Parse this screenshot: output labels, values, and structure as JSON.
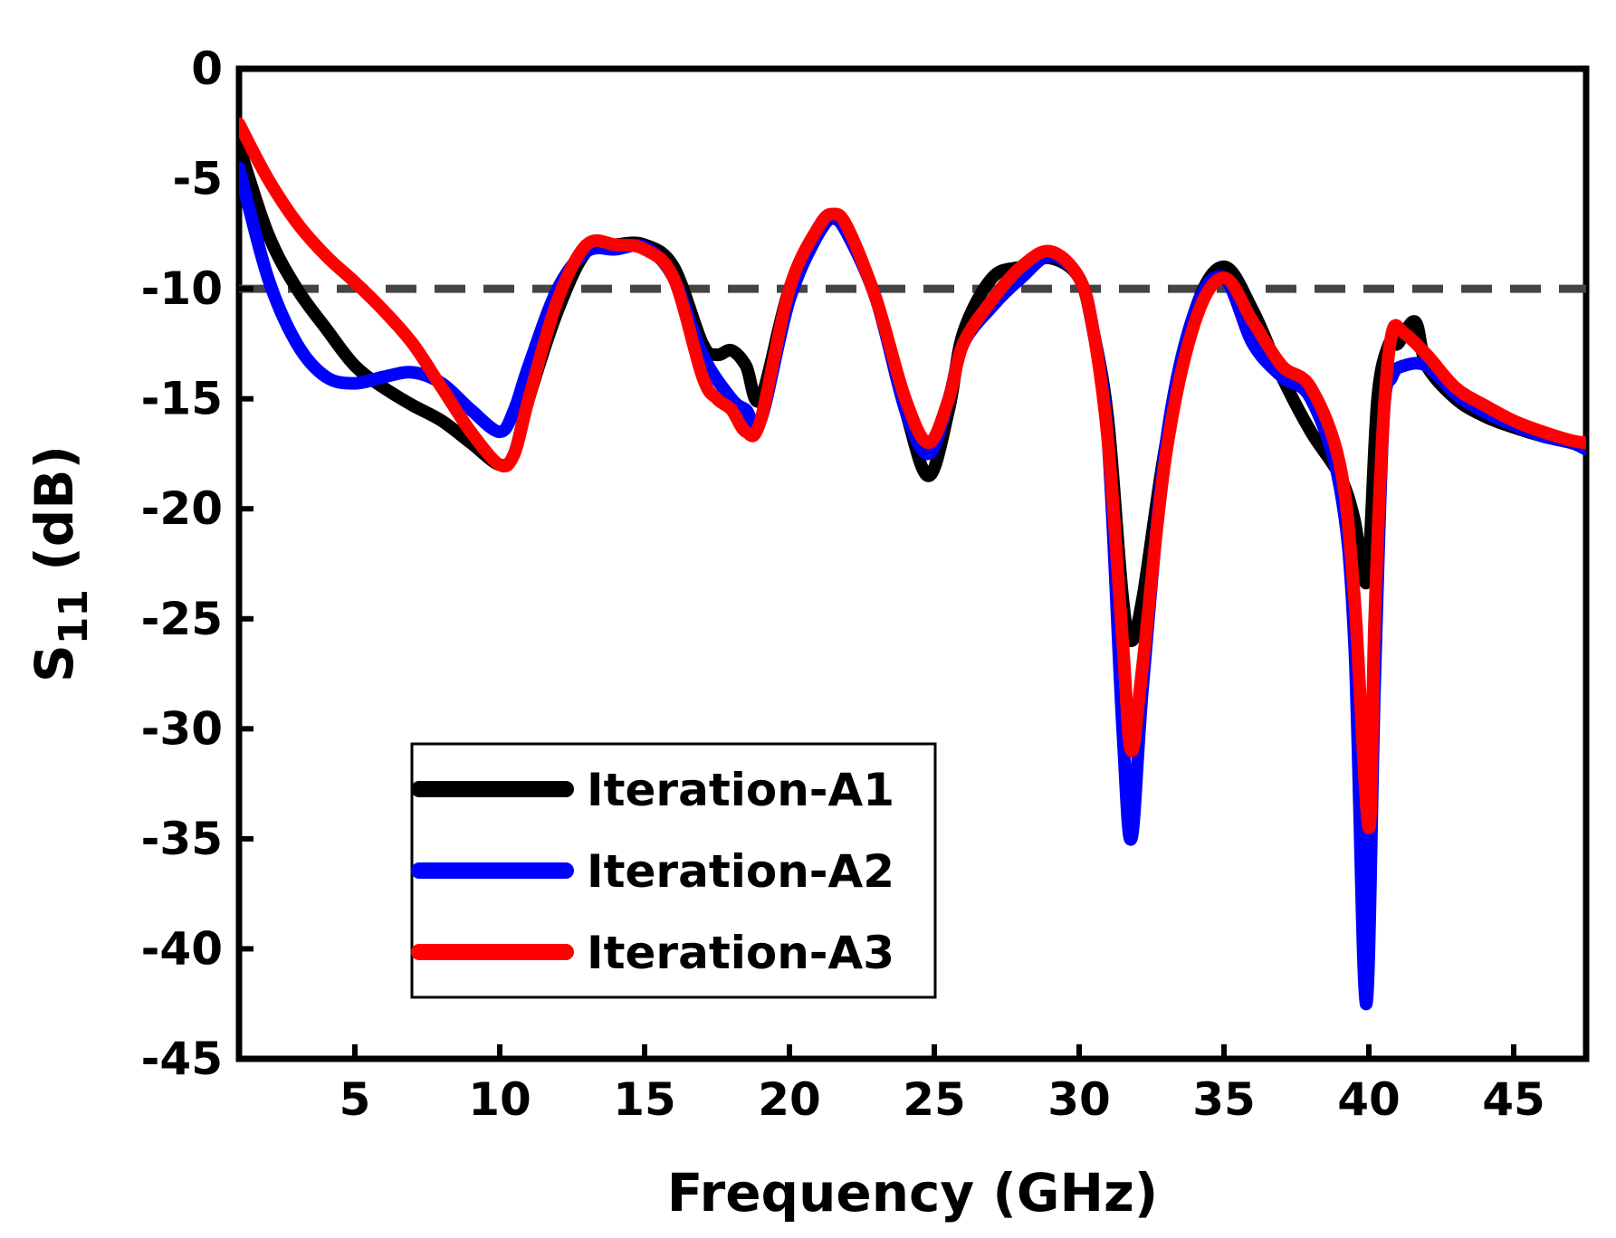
{
  "chart_data": {
    "type": "line",
    "title": "",
    "xlabel": "Frequency (GHz)",
    "ylabel_main": "S",
    "ylabel_sub": "11",
    "ylabel_unit": " (dB)",
    "xlim": [
      1,
      47.5
    ],
    "ylim": [
      -45,
      0
    ],
    "xticks": [
      5,
      10,
      15,
      20,
      25,
      30,
      35,
      40,
      45
    ],
    "yticks": [
      0,
      -5,
      -10,
      -15,
      -20,
      -25,
      -30,
      -35,
      -40,
      -45
    ],
    "grid": false,
    "legend_position": "bottom-left",
    "reference_line": {
      "y": -10,
      "style": "dashed",
      "color": "#444444"
    },
    "series": [
      {
        "name": "Iteration-A1",
        "color": "#000000",
        "x": [
          1,
          2,
          3,
          4,
          5,
          6,
          7,
          8,
          9,
          10,
          10.5,
          11,
          12,
          13,
          14,
          15,
          16,
          17,
          17.5,
          18,
          18.5,
          19,
          20,
          21,
          21.5,
          22,
          23,
          24,
          24.8,
          25.5,
          26,
          27,
          28,
          29,
          30,
          30.5,
          31,
          31.5,
          31.8,
          32.2,
          33,
          34,
          35,
          36,
          37,
          38,
          39,
          39.5,
          39.8,
          40,
          40.3,
          40.7,
          41,
          41.6,
          42,
          43,
          44,
          45,
          46,
          47,
          47.5
        ],
        "y": [
          -3.5,
          -7.5,
          -10,
          -11.8,
          -13.5,
          -14.5,
          -15.3,
          -16,
          -17,
          -18,
          -17.5,
          -15,
          -11,
          -8.3,
          -8,
          -8,
          -9,
          -12.5,
          -13,
          -12.8,
          -13.5,
          -15,
          -10,
          -7.5,
          -6.8,
          -7.5,
          -10.5,
          -15.5,
          -18.5,
          -15.5,
          -12,
          -9.5,
          -9,
          -8.6,
          -9.5,
          -12,
          -16,
          -24,
          -26,
          -24,
          -17,
          -11,
          -9,
          -11,
          -14,
          -16.5,
          -18.5,
          -20.5,
          -23,
          -22.5,
          -15,
          -12.5,
          -12.5,
          -11.5,
          -13.5,
          -15,
          -15.8,
          -16.3,
          -16.7,
          -17,
          -17.2
        ]
      },
      {
        "name": "Iteration-A2",
        "color": "#0000ff",
        "x": [
          1,
          2,
          3,
          4,
          5,
          6,
          7,
          8,
          9,
          10,
          10.5,
          11,
          12,
          13,
          14,
          15,
          16,
          17,
          18,
          18.5,
          19,
          20,
          21,
          21.5,
          22,
          23,
          24,
          24.8,
          25.5,
          26,
          27,
          28,
          29,
          30,
          30.5,
          31,
          31.5,
          31.8,
          32.2,
          33,
          34,
          35,
          36,
          37,
          38,
          39,
          39.5,
          39.9,
          40.2,
          40.5,
          40.8,
          41.2,
          42,
          43,
          44,
          45,
          46,
          47,
          47.5
        ],
        "y": [
          -4.5,
          -9.5,
          -12.5,
          -14,
          -14.3,
          -14,
          -13.8,
          -14.3,
          -15.5,
          -16.5,
          -15.5,
          -13.5,
          -10,
          -8.3,
          -8.2,
          -8.1,
          -9.5,
          -13,
          -15,
          -15.5,
          -16,
          -10.5,
          -7.5,
          -6.8,
          -7.5,
          -10.5,
          -15.5,
          -17.5,
          -15,
          -12.5,
          -10.8,
          -9.5,
          -8.5,
          -9.5,
          -12,
          -17,
          -30,
          -35,
          -28,
          -17,
          -11,
          -9.5,
          -12.5,
          -14,
          -15,
          -19,
          -26,
          -42.5,
          -28,
          -16,
          -14,
          -13.5,
          -13.5,
          -14.8,
          -15.6,
          -16.2,
          -16.7,
          -17,
          -17.3
        ]
      },
      {
        "name": "Iteration-A3",
        "color": "#ff0000",
        "x": [
          1,
          2,
          3,
          4,
          5,
          6,
          7,
          8,
          9,
          10,
          10.5,
          11,
          12,
          13,
          14,
          15,
          16,
          17,
          17.5,
          18,
          18.5,
          19,
          20,
          21,
          21.5,
          22,
          23,
          24,
          24.8,
          25.5,
          26,
          27,
          28,
          29,
          30,
          30.5,
          31,
          31.5,
          31.8,
          32.2,
          33,
          34,
          35,
          36,
          37,
          38,
          39,
          39.5,
          40,
          40.2,
          40.5,
          40.8,
          41.2,
          42,
          43,
          44,
          45,
          46,
          47,
          47.5
        ],
        "y": [
          -2.5,
          -5,
          -7,
          -8.5,
          -9.7,
          -11,
          -12.5,
          -14.5,
          -16.5,
          -18,
          -17.5,
          -15,
          -10.5,
          -8,
          -8,
          -8.2,
          -9.5,
          -14,
          -15,
          -15.5,
          -16.5,
          -16,
          -10,
          -7.2,
          -6.6,
          -7.2,
          -10.5,
          -15,
          -17,
          -15,
          -12.5,
          -10.5,
          -9,
          -8.3,
          -9.5,
          -12,
          -17,
          -26,
          -31,
          -27,
          -17.5,
          -11.5,
          -9.5,
          -11.5,
          -13.5,
          -14.5,
          -18,
          -24,
          -34.5,
          -25,
          -16,
          -12,
          -12,
          -13,
          -14.5,
          -15.3,
          -16,
          -16.5,
          -16.9,
          -17
        ]
      }
    ]
  }
}
